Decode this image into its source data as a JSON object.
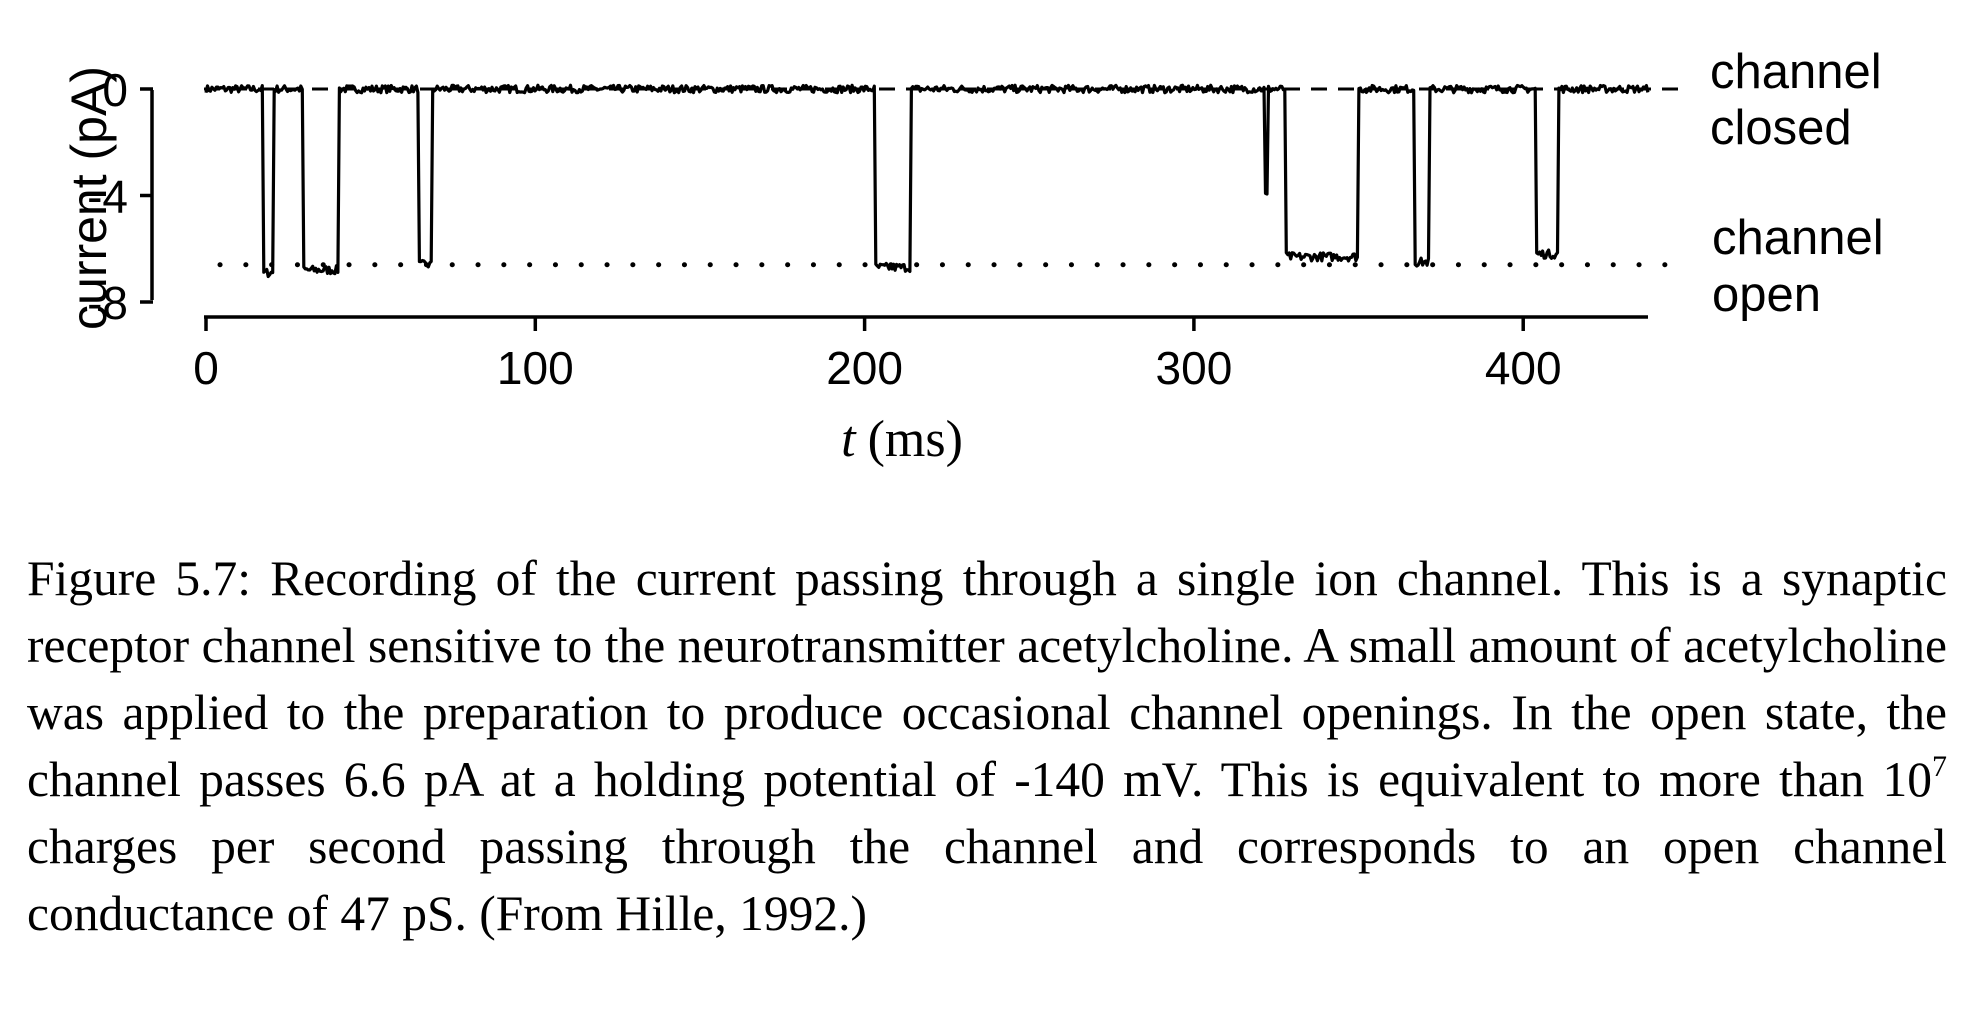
{
  "chart_data": {
    "type": "line",
    "xlabel_italic": "t",
    "xlabel_unit": "(ms)",
    "ylabel": "current (pA)",
    "xlim": [
      0,
      430
    ],
    "ylim": [
      -8,
      0
    ],
    "x_ticks": [
      0,
      100,
      200,
      300,
      400
    ],
    "y_ticks": [
      0,
      -4,
      -8
    ],
    "closed_level": 0,
    "open_level": -6.6,
    "closed_label": [
      "channel",
      "closed"
    ],
    "open_label": [
      "channel",
      "open"
    ],
    "series": [
      {
        "trace": "single-channel current",
        "openings": [
          {
            "start": 17.5,
            "end": 20.5,
            "level": -6.9
          },
          {
            "start": 29.5,
            "end": 40.5,
            "level": -6.8
          },
          {
            "start": 64.5,
            "end": 68.5,
            "level": -6.6
          },
          {
            "start": 203,
            "end": 214,
            "level": -6.7
          },
          {
            "start": 321.5,
            "end": 322.5,
            "level": -4.0
          },
          {
            "start": 328,
            "end": 350,
            "level": -6.3
          },
          {
            "start": 367,
            "end": 371.5,
            "level": -6.5
          },
          {
            "start": 404,
            "end": 410.5,
            "level": -6.2
          }
        ]
      }
    ]
  },
  "caption": {
    "label": "Figure 5.7:",
    "before_sup": "Recording of the current passing through a single ion channel. This is a synaptic receptor channel sensitive to the neurotransmitter acetylcholine. A small amount of acetylcholine was applied to the preparation to produce occasional channel openings. In the open state, the channel passes 6.6 pA at a holding potential of -140 mV. This is equivalent to more than 10",
    "sup": "7",
    "after_sup": " charges per second passing through the channel and corresponds to an open channel conductance of 47 pS. (From Hille, 1992.)"
  }
}
